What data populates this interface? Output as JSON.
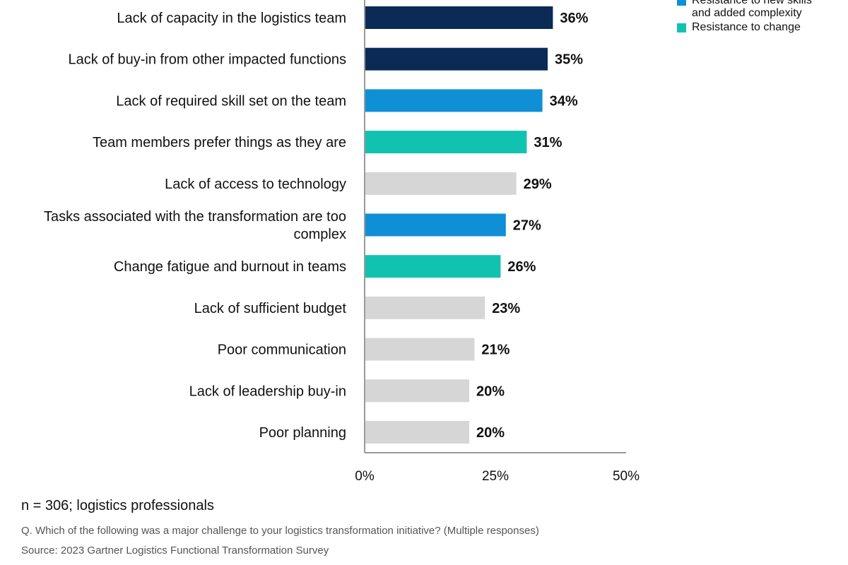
{
  "chart_data": {
    "type": "bar",
    "orientation": "horizontal",
    "categories": [
      "Lack of capacity in the logistics team",
      "Lack of buy-in from other impacted functions",
      "Lack of required skill set on the team",
      "Team members prefer things as they are",
      "Lack of access to technology",
      "Tasks associated with the transformation are too complex",
      "Change fatigue and burnout in teams",
      "Lack of sufficient budget",
      "Poor communication",
      "Lack of leadership buy-in",
      "Poor planning"
    ],
    "values": [
      36,
      35,
      34,
      31,
      29,
      27,
      26,
      23,
      21,
      20,
      20
    ],
    "value_labels": [
      "36%",
      "35%",
      "34%",
      "31%",
      "29%",
      "27%",
      "26%",
      "23%",
      "21%",
      "20%",
      "20%"
    ],
    "bar_groups": [
      "dark",
      "dark",
      "blue",
      "teal",
      "gray",
      "blue",
      "teal",
      "gray",
      "gray",
      "gray",
      "gray"
    ],
    "xlim": [
      0,
      50
    ],
    "x_ticks": [
      0,
      25,
      50
    ],
    "x_tick_labels": [
      "0%",
      "25%",
      "50%"
    ],
    "grid": false,
    "legend_position": "top-right",
    "colors": {
      "dark": "#0b2a55",
      "blue": "#0f8fd6",
      "teal": "#12c2b0",
      "gray": "#d6d6d6",
      "axis": "#9a9a9a"
    },
    "legend": [
      {
        "group": "blue",
        "label_lines": [
          "Resistance to new skills",
          "and added complexity"
        ]
      },
      {
        "group": "teal",
        "label_lines": [
          "Resistance to change"
        ]
      }
    ]
  },
  "footer": {
    "sample": "n = 306; logistics professionals",
    "question": "Q. Which of the following was a major challenge to your logistics transformation initiative? (Multiple responses)",
    "source": "Source: 2023 Gartner Logistics Functional Transformation Survey"
  }
}
